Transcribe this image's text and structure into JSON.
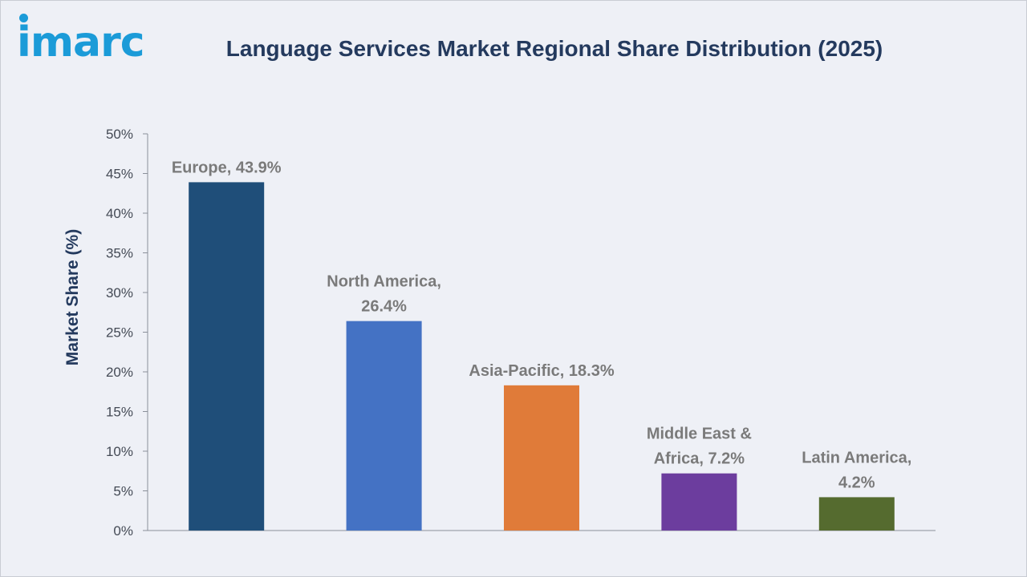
{
  "brand": {
    "logo_text": "imarc",
    "logo_color": "#1b9bd8"
  },
  "chart_data": {
    "type": "bar",
    "title": "Language Services Market Regional Share Distribution (2025)",
    "xlabel": "",
    "ylabel": "Market Share (%)",
    "ylim": [
      0,
      50
    ],
    "yticks": [
      0,
      5,
      10,
      15,
      20,
      25,
      30,
      35,
      40,
      45,
      50
    ],
    "ytick_labels": [
      "0%",
      "5%",
      "10%",
      "15%",
      "20%",
      "25%",
      "30%",
      "35%",
      "40%",
      "45%",
      "50%"
    ],
    "grid": false,
    "legend": "none",
    "categories": [
      "Europe",
      "North America",
      "Asia-Pacific",
      "Middle East & Africa",
      "Latin America"
    ],
    "values": [
      43.9,
      26.4,
      18.3,
      7.2,
      4.2
    ],
    "data_labels": [
      [
        "Europe, 43.9%"
      ],
      [
        "North America,",
        "26.4%"
      ],
      [
        "Asia-Pacific, 18.3%"
      ],
      [
        "Middle East &",
        "Africa, 7.2%"
      ],
      [
        "Latin America,",
        "4.2%"
      ]
    ],
    "colors": [
      "#1f4e79",
      "#4472c4",
      "#e07b39",
      "#6c3d9e",
      "#556b2f"
    ]
  }
}
